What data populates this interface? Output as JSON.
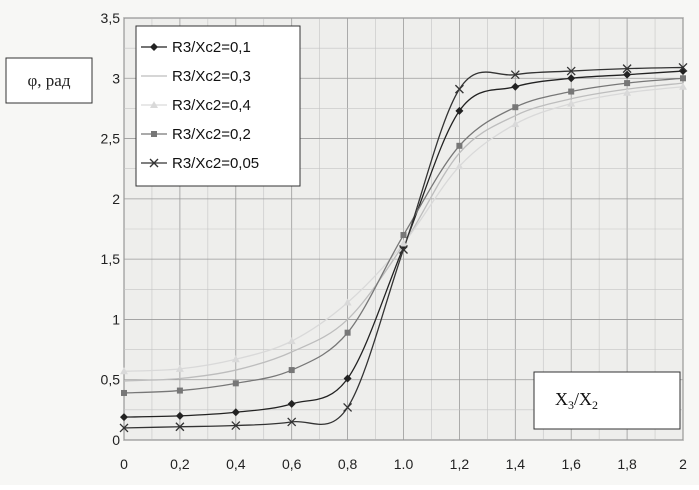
{
  "chart_data": {
    "type": "line",
    "ylabel": "φ, рад",
    "xlabel_main": "X",
    "xlabel_sub1": "3",
    "xlabel_sep": "/X",
    "xlabel_sub2": "2",
    "xlim": [
      0,
      2
    ],
    "ylim": [
      0,
      3.5
    ],
    "grid": true,
    "legend_position": "top-left",
    "x_ticks": [
      "0",
      "0,2",
      "0,4",
      "0,6",
      "0,8",
      "1.0",
      "1,2",
      "1,4",
      "1,6",
      "1,8",
      "2"
    ],
    "y_ticks": [
      "0",
      "0,5",
      "1",
      "1,5",
      "2",
      "2,5",
      "3",
      "3,5"
    ],
    "x": [
      0,
      0.2,
      0.4,
      0.6,
      0.8,
      1.0,
      1.2,
      1.4,
      1.6,
      1.8,
      2.0
    ],
    "series": [
      {
        "name": "R3/Xc2=0,1",
        "color": "#222222",
        "marker": "diamond",
        "values": [
          0.19,
          0.2,
          0.23,
          0.3,
          0.51,
          1.6,
          2.73,
          2.93,
          3.0,
          3.03,
          3.06
        ]
      },
      {
        "name": "R3/Xc2=0,3",
        "color": "#bdbdbd",
        "marker": "none",
        "values": [
          0.49,
          0.51,
          0.58,
          0.73,
          1.0,
          1.62,
          2.38,
          2.69,
          2.83,
          2.91,
          2.96
        ]
      },
      {
        "name": "R3/Xc2=0,4",
        "color": "#d9d9d9",
        "marker": "triangle",
        "values": [
          0.57,
          0.59,
          0.67,
          0.82,
          1.14,
          1.63,
          2.27,
          2.62,
          2.79,
          2.88,
          2.93
        ]
      },
      {
        "name": "R3/Xc2=0,2",
        "color": "#777777",
        "marker": "square",
        "values": [
          0.39,
          0.41,
          0.47,
          0.58,
          0.89,
          1.7,
          2.44,
          2.76,
          2.89,
          2.96,
          3.0
        ]
      },
      {
        "name": "R3/Xc2=0,05",
        "color": "#333333",
        "marker": "x",
        "values": [
          0.1,
          0.11,
          0.12,
          0.15,
          0.27,
          1.58,
          2.91,
          3.03,
          3.06,
          3.08,
          3.09
        ]
      }
    ]
  }
}
